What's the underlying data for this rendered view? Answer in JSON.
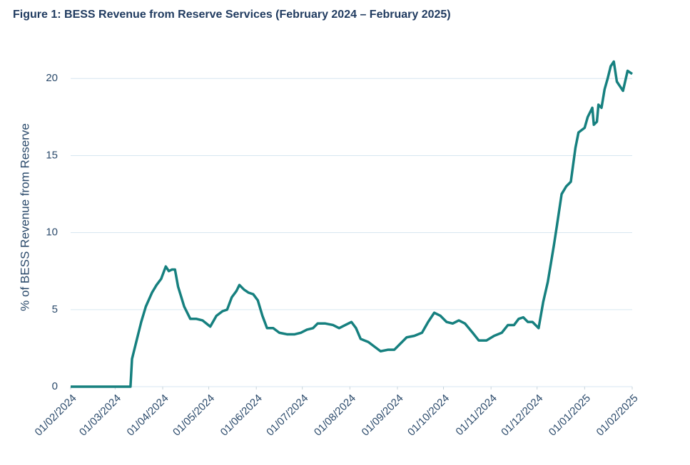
{
  "chart_data": {
    "type": "line",
    "title": "Figure 1: BESS Revenue from Reserve Services (February 2024 – February 2025)",
    "y_label": "% of BESS Revenue from Reserve",
    "grid": true,
    "xlim": [
      "2024-02-01",
      "2025-02-01"
    ],
    "xticks": [
      {
        "value": "2024-02-01",
        "label": "01/02/2024"
      },
      {
        "value": "2024-03-01",
        "label": "01/03/2024"
      },
      {
        "value": "2024-04-01",
        "label": "01/04/2024"
      },
      {
        "value": "2024-05-01",
        "label": "01/05/2024"
      },
      {
        "value": "2024-06-01",
        "label": "01/06/2024"
      },
      {
        "value": "2024-07-01",
        "label": "01/07/2024"
      },
      {
        "value": "2024-08-01",
        "label": "01/08/2024"
      },
      {
        "value": "2024-09-01",
        "label": "01/09/2024"
      },
      {
        "value": "2024-10-01",
        "label": "01/10/2024"
      },
      {
        "value": "2024-11-01",
        "label": "01/11/2024"
      },
      {
        "value": "2024-12-01",
        "label": "01/12/2024"
      },
      {
        "value": "2025-01-01",
        "label": "01/01/2025"
      },
      {
        "value": "2025-02-01",
        "label": "01/02/2025"
      }
    ],
    "ylim": [
      0,
      22
    ],
    "yticks": [
      0,
      5,
      10,
      15,
      20
    ],
    "x": [
      "2024-02-01",
      "2024-03-11",
      "2024-03-12",
      "2024-03-15",
      "2024-03-18",
      "2024-03-21",
      "2024-03-25",
      "2024-03-28",
      "2024-03-31",
      "2024-04-03",
      "2024-04-05",
      "2024-04-07",
      "2024-04-09",
      "2024-04-11",
      "2024-04-15",
      "2024-04-19",
      "2024-04-23",
      "2024-04-27",
      "2024-05-02",
      "2024-05-06",
      "2024-05-10",
      "2024-05-13",
      "2024-05-16",
      "2024-05-19",
      "2024-05-21",
      "2024-05-24",
      "2024-05-27",
      "2024-05-30",
      "2024-06-02",
      "2024-06-05",
      "2024-06-08",
      "2024-06-12",
      "2024-06-16",
      "2024-06-21",
      "2024-06-26",
      "2024-06-30",
      "2024-07-04",
      "2024-07-08",
      "2024-07-11",
      "2024-07-16",
      "2024-07-21",
      "2024-07-25",
      "2024-07-29",
      "2024-08-02",
      "2024-08-05",
      "2024-08-08",
      "2024-08-13",
      "2024-08-17",
      "2024-08-21",
      "2024-08-26",
      "2024-08-30",
      "2024-09-03",
      "2024-09-07",
      "2024-09-12",
      "2024-09-17",
      "2024-09-21",
      "2024-09-25",
      "2024-09-29",
      "2024-10-03",
      "2024-10-07",
      "2024-10-11",
      "2024-10-15",
      "2024-10-20",
      "2024-10-24",
      "2024-10-29",
      "2024-11-03",
      "2024-11-08",
      "2024-11-12",
      "2024-11-16",
      "2024-11-19",
      "2024-11-22",
      "2024-11-25",
      "2024-11-28",
      "2024-12-02",
      "2024-12-05",
      "2024-12-08",
      "2024-12-10",
      "2024-12-12",
      "2024-12-14",
      "2024-12-17",
      "2024-12-20",
      "2024-12-23",
      "2024-12-26",
      "2024-12-28",
      "2025-01-01",
      "2025-01-03",
      "2025-01-06",
      "2025-01-07",
      "2025-01-09",
      "2025-01-10",
      "2025-01-12",
      "2025-01-14",
      "2025-01-16",
      "2025-01-18",
      "2025-01-20",
      "2025-01-22",
      "2025-01-24",
      "2025-01-26",
      "2025-01-29",
      "2025-02-01"
    ],
    "series": [
      {
        "color": "#16807f",
        "values": [
          0,
          0,
          1.8,
          3.0,
          4.2,
          5.2,
          6.1,
          6.6,
          7.0,
          7.8,
          7.5,
          7.6,
          7.6,
          6.5,
          5.2,
          4.4,
          4.4,
          4.3,
          3.9,
          4.6,
          4.9,
          5.0,
          5.8,
          6.2,
          6.6,
          6.3,
          6.1,
          6.0,
          5.6,
          4.6,
          3.8,
          3.8,
          3.5,
          3.4,
          3.4,
          3.5,
          3.7,
          3.8,
          4.1,
          4.1,
          4.0,
          3.8,
          4.0,
          4.2,
          3.8,
          3.1,
          2.9,
          2.6,
          2.3,
          2.4,
          2.4,
          2.8,
          3.2,
          3.3,
          3.5,
          4.2,
          4.8,
          4.6,
          4.2,
          4.1,
          4.3,
          4.1,
          3.5,
          3.0,
          3.0,
          3.3,
          3.5,
          4.0,
          4.0,
          4.4,
          4.5,
          4.2,
          4.2,
          3.8,
          5.5,
          6.8,
          8.0,
          9.2,
          10.5,
          12.5,
          13.0,
          13.3,
          15.5,
          16.5,
          16.8,
          17.5,
          18.1,
          17.0,
          17.2,
          18.3,
          18.1,
          19.3,
          20.0,
          20.8,
          21.1,
          19.8,
          19.5,
          19.2,
          20.5,
          20.3
        ]
      }
    ]
  }
}
